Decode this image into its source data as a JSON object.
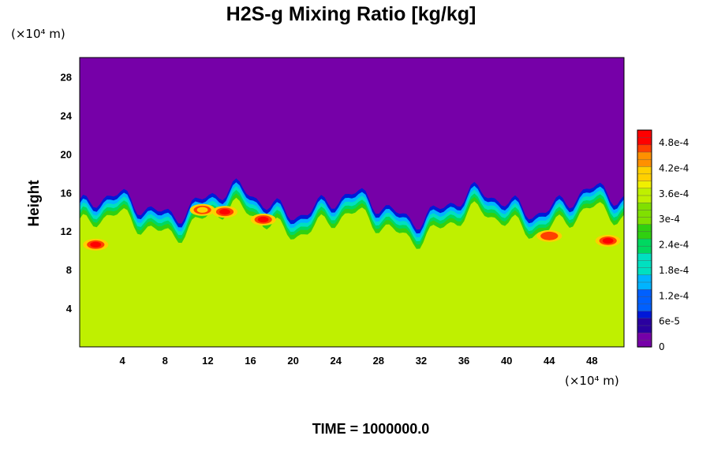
{
  "chart_data": {
    "type": "heatmap",
    "title": "H2S-g Mixing Ratio [kg/kg]",
    "ylabel": "Height",
    "x_unit": "(×10⁴ m)",
    "y_unit": "(×10⁴ m)",
    "xlim": [
      0,
      51
    ],
    "ylim": [
      0,
      30
    ],
    "x_ticks": [
      "4",
      "8",
      "12",
      "16",
      "20",
      "24",
      "28",
      "32",
      "36",
      "40",
      "44",
      "48"
    ],
    "y_ticks": [
      "4",
      "8",
      "12",
      "16",
      "20",
      "24",
      "28"
    ],
    "colorbar": {
      "min": 0,
      "max": 0.00051,
      "labels": [
        "0",
        "6e-5",
        "1.2e-4",
        "1.8e-4",
        "2.4e-4",
        "3e-4",
        "3.6e-4",
        "4.2e-4",
        "4.8e-4"
      ],
      "values": [
        0,
        6e-05,
        0.00012,
        0.00018,
        0.00024,
        0.0003,
        0.00036,
        0.00042,
        0.00048
      ]
    },
    "field": {
      "upper_layer_value": 0,
      "lower_layer_value": 0.00034,
      "interface_height_approx": 13,
      "hotspots": [
        {
          "x": 1.5,
          "y": 10.6,
          "value": 0.0005
        },
        {
          "x": 13.6,
          "y": 14.0,
          "value": 0.0005
        },
        {
          "x": 17.2,
          "y": 13.2,
          "value": 0.0005
        },
        {
          "x": 11.5,
          "y": 14.2,
          "value": 0.00042
        },
        {
          "x": 44,
          "y": 11.5,
          "value": 0.00046
        },
        {
          "x": 49.5,
          "y": 11.0,
          "value": 0.0005
        }
      ]
    },
    "footer": "TIME = 1000000.0"
  }
}
